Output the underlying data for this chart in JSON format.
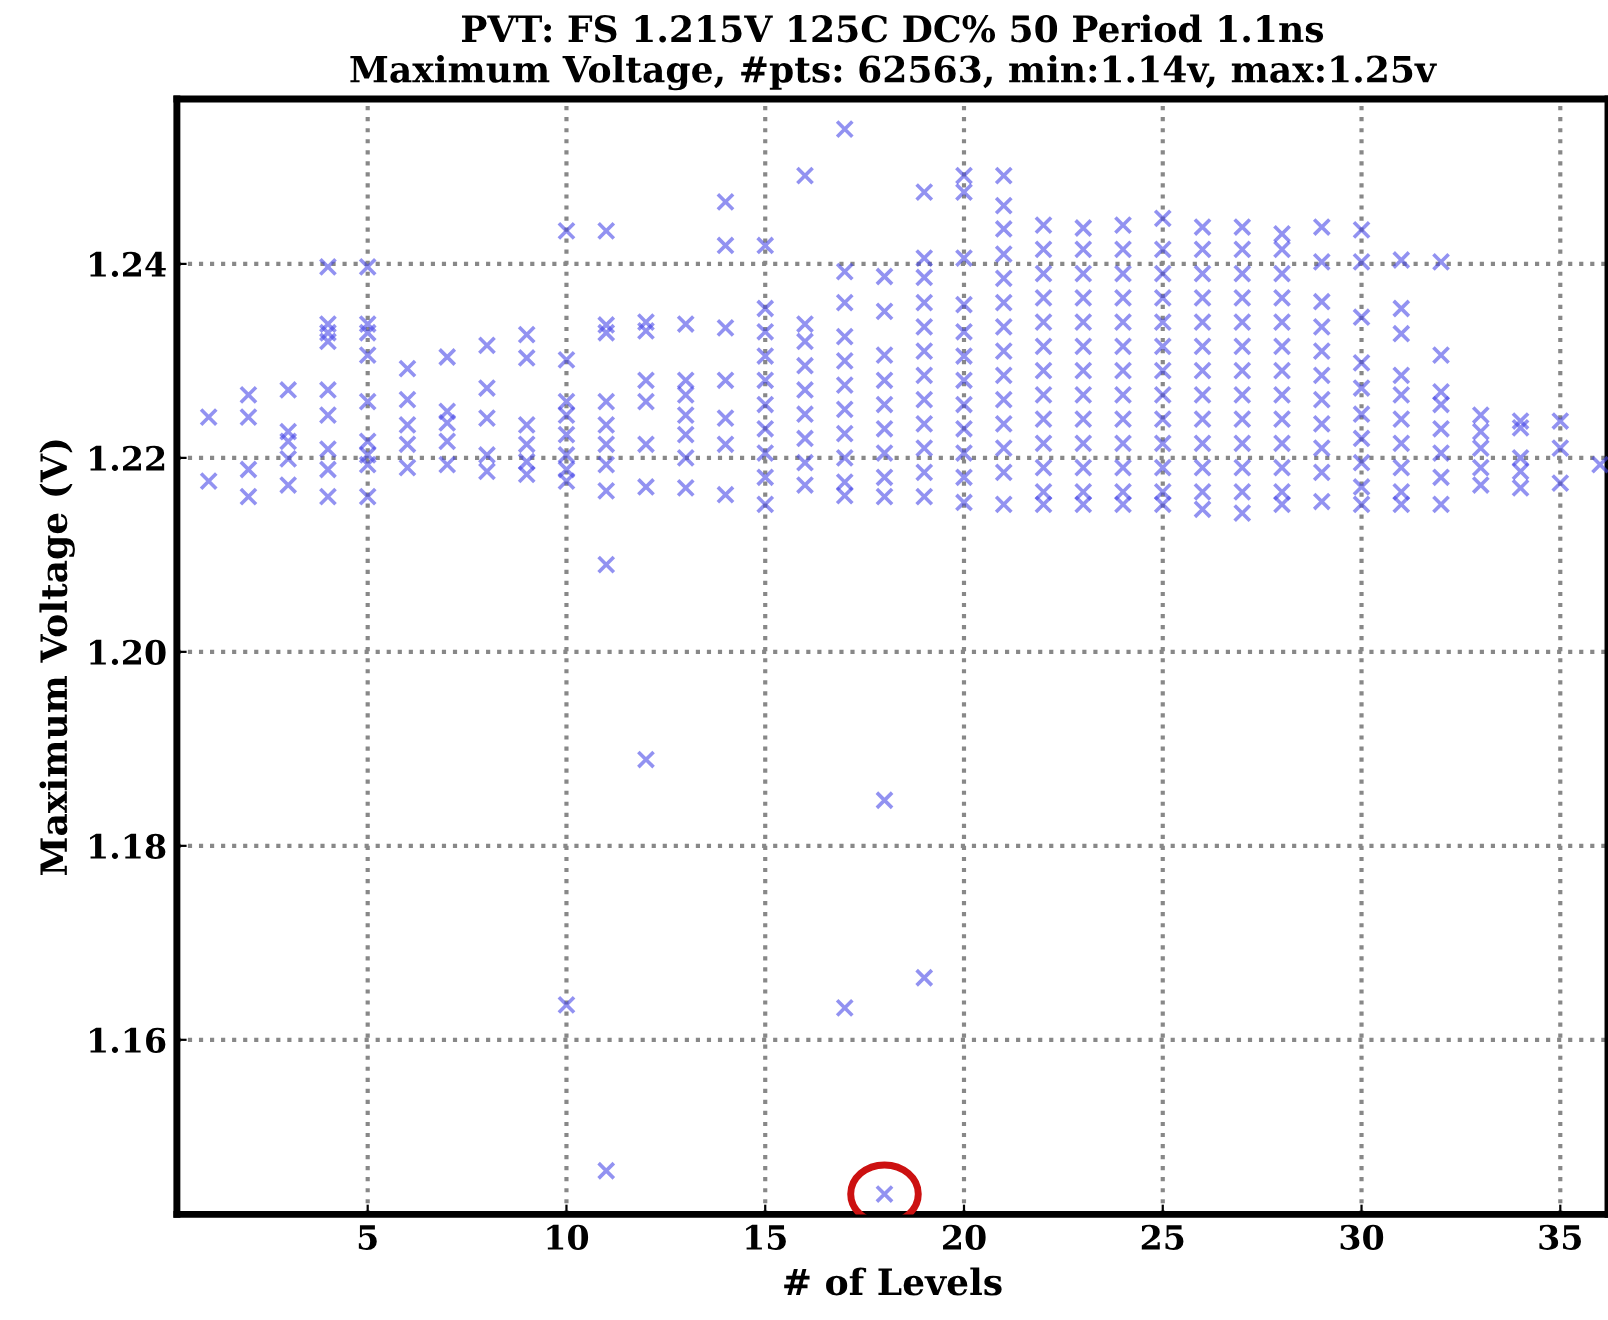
{
  "chart_data": {
    "type": "scatter",
    "title": "PVT: FS 1.215V 125C DC% 50 Period 1.1ns\nMaximum Voltage, #pts: 62563, min:1.14v, max:1.25v",
    "xlabel": "# of Levels",
    "ylabel": "Maximum Voltage (V)",
    "xlim": [
      0.2,
      36.2
    ],
    "ylim": [
      1.142,
      1.257
    ],
    "xticks": [
      5,
      10,
      15,
      20,
      25,
      30,
      35
    ],
    "yticks": [
      1.16,
      1.18,
      {
        "value": 1.2,
        "label": "1.20"
      },
      1.22,
      1.24
    ],
    "grid": true,
    "marker": "cross",
    "series": [
      {
        "color": "#4a4ae8",
        "x": [
          1,
          1,
          2,
          2,
          2,
          2,
          3,
          3,
          3,
          3,
          3,
          4,
          4,
          4,
          4,
          4,
          4,
          4,
          4,
          4,
          5,
          5,
          5,
          5,
          5,
          5,
          5,
          5,
          5,
          6,
          6,
          6,
          6,
          6,
          7,
          7,
          7,
          7,
          7,
          8,
          8,
          8,
          8,
          8,
          9,
          9,
          9,
          9,
          9,
          9,
          10,
          10,
          10,
          10,
          10,
          10,
          10,
          10,
          10,
          11,
          11,
          11,
          11,
          11,
          11,
          11,
          11,
          11,
          11,
          12,
          12,
          12,
          12,
          12,
          12,
          12,
          13,
          13,
          13,
          13,
          13,
          13,
          13,
          14,
          14,
          14,
          14,
          14,
          14,
          14,
          15,
          15,
          15,
          15,
          15,
          15,
          15,
          15,
          15,
          15,
          16,
          16,
          16,
          16,
          16,
          16,
          16,
          16,
          16,
          17,
          17,
          17,
          17,
          17,
          17,
          17,
          17,
          17,
          17,
          17,
          17,
          18,
          18,
          18,
          18,
          18,
          18,
          18,
          18,
          18,
          18,
          18,
          19,
          19,
          19,
          19,
          19,
          19,
          19,
          19,
          19,
          19,
          19,
          19,
          19,
          20,
          20,
          20,
          20,
          20,
          20,
          20,
          20,
          20,
          20,
          20,
          20,
          21,
          21,
          21,
          21,
          21,
          21,
          21,
          21,
          21,
          21,
          21,
          21,
          21,
          21,
          22,
          22,
          22,
          22,
          22,
          22,
          22,
          22,
          22,
          22,
          22,
          22,
          22,
          23,
          23,
          23,
          23,
          23,
          23,
          23,
          23,
          23,
          23,
          23,
          23,
          23,
          24,
          24,
          24,
          24,
          24,
          24,
          24,
          24,
          24,
          24,
          24,
          24,
          24,
          25,
          25,
          25,
          25,
          25,
          25,
          25,
          25,
          25,
          25,
          25,
          25,
          25,
          26,
          26,
          26,
          26,
          26,
          26,
          26,
          26,
          26,
          26,
          26,
          26,
          26,
          27,
          27,
          27,
          27,
          27,
          27,
          27,
          27,
          27,
          27,
          27,
          27,
          27,
          28,
          28,
          28,
          28,
          28,
          28,
          28,
          28,
          28,
          28,
          28,
          28,
          28,
          29,
          29,
          29,
          29,
          29,
          29,
          29,
          29,
          29,
          29,
          29,
          30,
          30,
          30,
          30,
          30,
          30,
          30,
          30,
          30,
          30,
          31,
          31,
          31,
          31,
          31,
          31,
          31,
          31,
          31,
          31,
          32,
          32,
          32,
          32,
          32,
          32,
          32,
          32,
          33,
          33,
          33,
          33,
          33,
          34,
          34,
          34,
          34,
          34,
          35,
          35,
          35,
          36
        ],
        "values": [
          1.2242,
          1.2176,
          1.2265,
          1.2242,
          1.2188,
          1.216,
          1.227,
          1.2227,
          1.2217,
          1.2199,
          1.2172,
          1.2397,
          1.2338,
          1.2329,
          1.232,
          1.227,
          1.2244,
          1.2209,
          1.2188,
          1.216,
          1.2397,
          1.2338,
          1.2329,
          1.2306,
          1.2258,
          1.2217,
          1.2203,
          1.2193,
          1.216,
          1.2292,
          1.226,
          1.2234,
          1.2214,
          1.219,
          1.2304,
          1.2248,
          1.2236,
          1.2217,
          1.2193,
          1.2316,
          1.2272,
          1.2241,
          1.2203,
          1.2186,
          1.2327,
          1.2303,
          1.2234,
          1.2214,
          1.2196,
          1.2183,
          1.2434,
          1.2301,
          1.2258,
          1.2244,
          1.2224,
          1.2203,
          1.2188,
          1.1636,
          1.2176,
          1.2434,
          1.2337,
          1.2329,
          1.2258,
          1.2234,
          1.2214,
          1.2193,
          1.2166,
          1.209,
          1.1465,
          1.234,
          1.2331,
          1.228,
          1.2258,
          1.2214,
          1.217,
          1.1889,
          1.2338,
          1.228,
          1.2265,
          1.2244,
          1.2224,
          1.22,
          1.2169,
          1.2464,
          1.2419,
          1.2334,
          1.228,
          1.2241,
          1.2214,
          1.2162,
          1.2419,
          1.2354,
          1.233,
          1.2305,
          1.228,
          1.2255,
          1.223,
          1.2205,
          1.218,
          1.2152,
          1.2491,
          1.2338,
          1.232,
          1.2295,
          1.227,
          1.2245,
          1.222,
          1.2195,
          1.2172,
          1.2539,
          1.2392,
          1.236,
          1.2325,
          1.23,
          1.2275,
          1.225,
          1.2225,
          1.22,
          1.2175,
          1.2161,
          1.1633,
          1.2387,
          1.2351,
          1.2306,
          1.228,
          1.2255,
          1.223,
          1.2205,
          1.218,
          1.216,
          1.1847,
          1.1441,
          1.2474,
          1.2406,
          1.2386,
          1.236,
          1.2335,
          1.231,
          1.2285,
          1.226,
          1.2235,
          1.221,
          1.2185,
          1.216,
          1.1664,
          1.2491,
          1.2474,
          1.2406,
          1.2358,
          1.233,
          1.2305,
          1.228,
          1.2255,
          1.223,
          1.2205,
          1.218,
          1.2154,
          1.2491,
          1.246,
          1.2436,
          1.241,
          1.2385,
          1.236,
          1.2335,
          1.231,
          1.2285,
          1.226,
          1.2235,
          1.221,
          1.2185,
          1.2152,
          1.244,
          1.2415,
          1.239,
          1.2365,
          1.234,
          1.2315,
          1.229,
          1.2265,
          1.224,
          1.2215,
          1.219,
          1.2165,
          1.2152,
          1.2437,
          1.2415,
          1.239,
          1.2365,
          1.234,
          1.2315,
          1.229,
          1.2265,
          1.224,
          1.2215,
          1.219,
          1.2165,
          1.2152,
          1.244,
          1.2415,
          1.239,
          1.2365,
          1.234,
          1.2315,
          1.229,
          1.2265,
          1.224,
          1.2215,
          1.219,
          1.2165,
          1.2152,
          1.2447,
          1.2415,
          1.239,
          1.2365,
          1.234,
          1.2315,
          1.229,
          1.2265,
          1.224,
          1.2215,
          1.219,
          1.2165,
          1.2152,
          1.2438,
          1.2415,
          1.239,
          1.2365,
          1.234,
          1.2315,
          1.229,
          1.2265,
          1.224,
          1.2215,
          1.219,
          1.2165,
          1.2147,
          1.2438,
          1.2415,
          1.239,
          1.2365,
          1.234,
          1.2315,
          1.229,
          1.2265,
          1.224,
          1.2215,
          1.219,
          1.2165,
          1.2143,
          1.2431,
          1.2415,
          1.239,
          1.2365,
          1.234,
          1.2315,
          1.229,
          1.2265,
          1.224,
          1.2215,
          1.219,
          1.2165,
          1.2152,
          1.2438,
          1.2402,
          1.2361,
          1.2335,
          1.231,
          1.2285,
          1.226,
          1.2235,
          1.221,
          1.2185,
          1.2155,
          1.2435,
          1.2402,
          1.2345,
          1.2298,
          1.2272,
          1.2245,
          1.222,
          1.2195,
          1.217,
          1.2152,
          1.2404,
          1.2354,
          1.2328,
          1.2285,
          1.2265,
          1.224,
          1.2215,
          1.219,
          1.2165,
          1.2152,
          1.2402,
          1.2306,
          1.2268,
          1.2255,
          1.223,
          1.2205,
          1.218,
          1.2152,
          1.2244,
          1.2227,
          1.221,
          1.219,
          1.2172,
          1.2238,
          1.2231,
          1.22,
          1.2186,
          1.2169,
          1.2238,
          1.221,
          1.2174,
          1.2193
        ]
      }
    ]
  }
}
